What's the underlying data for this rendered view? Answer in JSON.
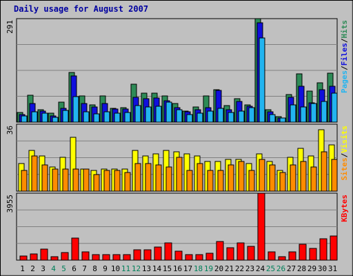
{
  "chart_data": {
    "type": "bar",
    "title": "Daily usage for August 2007",
    "categories": [
      "1",
      "2",
      "3",
      "4",
      "5",
      "6",
      "7",
      "8",
      "9",
      "10",
      "11",
      "12",
      "13",
      "14",
      "15",
      "16",
      "17",
      "18",
      "19",
      "20",
      "21",
      "22",
      "23",
      "24",
      "25",
      "26",
      "27",
      "28",
      "29",
      "30",
      "31"
    ],
    "weekend_days": [
      "4",
      "5",
      "11",
      "12",
      "18",
      "19",
      "25",
      "26"
    ],
    "panels": [
      {
        "id": "hits-files-pages",
        "ymax": 291,
        "ymax_label": "291",
        "right_label_parts": [
          "Pages",
          "/",
          "Files",
          "/",
          "Hits"
        ],
        "series": [
          {
            "name": "Hits",
            "color": "#2e8b57",
            "values": [
              28,
              76,
              35,
              25,
              57,
              140,
              74,
              48,
              74,
              39,
              40,
              106,
              81,
              82,
              74,
              52,
              32,
              42,
              74,
              91,
              47,
              65,
              48,
              291,
              34,
              16,
              78,
              136,
              88,
              110,
              137
            ]
          },
          {
            "name": "Files",
            "color": "#1010dd",
            "values": [
              22,
              52,
              32,
              18,
              38,
              130,
              52,
              42,
              52,
              36,
              36,
              70,
              65,
              68,
              60,
              40,
              29,
              34,
              40,
              89,
              35,
              59,
              45,
              280,
              30,
              12,
              70,
              101,
              54,
              92,
              101
            ]
          },
          {
            "name": "Pages",
            "color": "#22b4f0",
            "values": [
              17,
              30,
              25,
              14,
              33,
              71,
              29,
              24,
              29,
              26,
              28,
              47,
              42,
              45,
              56,
              34,
              22,
              25,
              32,
              38,
              27,
              31,
              41,
              236,
              21,
              11,
              49,
              42,
              53,
              59,
              82
            ]
          }
        ]
      },
      {
        "id": "visits-sites",
        "ymax": 36,
        "ymax_label": "36",
        "right_label_parts": [
          "Sites",
          "/",
          "Visits"
        ],
        "series": [
          {
            "name": "Visits",
            "color": "#ffff00",
            "values": [
              15,
              22,
              19,
              13,
              18,
              29,
              12,
              11,
              12,
              12,
              12,
              22,
              19,
              20,
              22,
              21,
              20,
              19,
              16,
              16,
              17,
              17,
              15,
              20,
              16,
              11,
              18,
              23,
              19,
              33,
              25
            ]
          },
          {
            "name": "Sites",
            "color": "#ff8c00",
            "values": [
              11,
              19,
              14,
              12,
              12,
              12,
              12,
              9,
              11,
              11,
              10,
              15,
              15,
              14,
              13,
              18,
              11,
              15,
              11,
              11,
              14,
              16,
              11,
              17,
              14,
              10,
              14,
              16,
              13,
              21,
              17
            ]
          }
        ]
      },
      {
        "id": "kbytes",
        "ymax": 3955,
        "ymax_label": "3955",
        "right_label_parts": [
          "KBytes"
        ],
        "series": [
          {
            "name": "KBytes",
            "color": "#ff0000",
            "values": [
              240,
              380,
              650,
              200,
              440,
              1300,
              470,
              320,
              320,
              330,
              330,
              620,
              630,
              790,
              1020,
              550,
              320,
              320,
              400,
              1120,
              740,
              1020,
              830,
              3955,
              470,
              200,
              470,
              920,
              700,
              1270,
              1430
            ]
          }
        ]
      }
    ]
  }
}
